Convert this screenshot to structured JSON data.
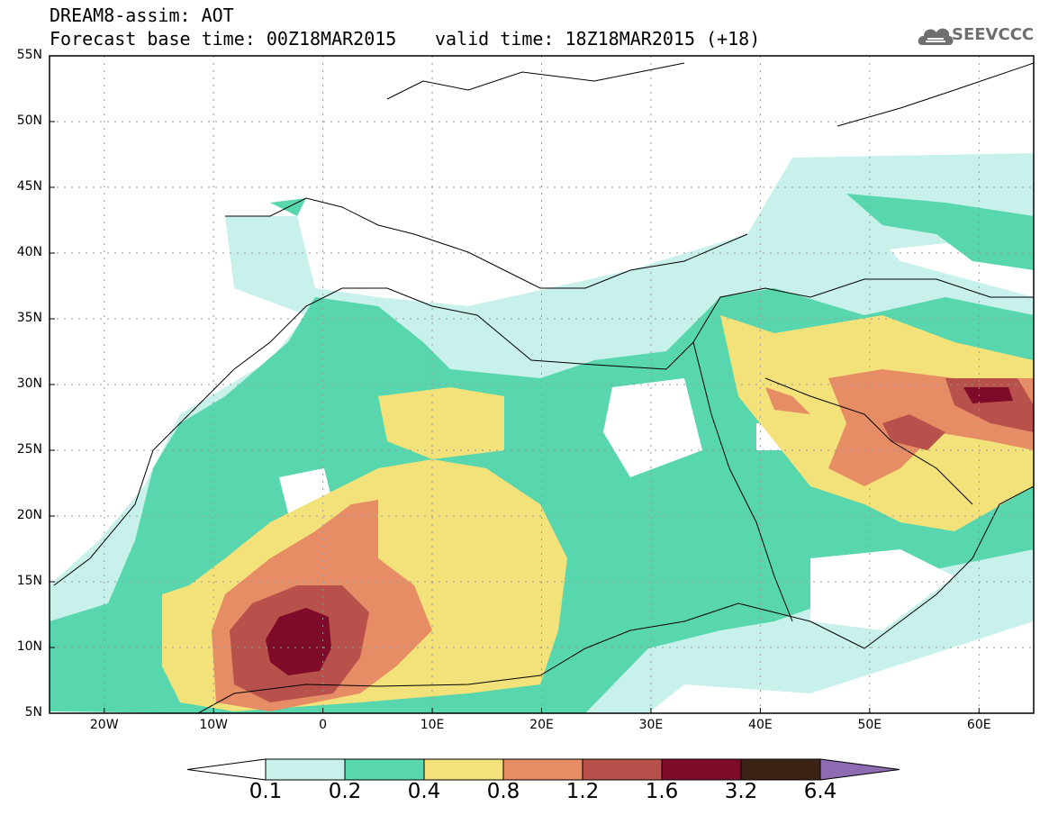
{
  "header": {
    "title_line1": "DREAM8-assim: AOT",
    "title_line2": "Forecast base time: 00Z18MAR2015",
    "valid_time": "valid time: 18Z18MAR2015 (+18)",
    "logo_text": "SEEVCCC"
  },
  "axes": {
    "lat_labels": [
      "55N",
      "50N",
      "45N",
      "40N",
      "35N",
      "30N",
      "25N",
      "20N",
      "15N",
      "10N",
      "5N"
    ],
    "lon_labels": [
      "20W",
      "10W",
      "0",
      "10E",
      "20E",
      "30E",
      "40E",
      "50E",
      "60E"
    ]
  },
  "colorbar": {
    "labels": [
      "0.1",
      "0.2",
      "0.4",
      "0.8",
      "1.2",
      "1.6",
      "3.2",
      "6.4"
    ],
    "colors": [
      "#c7f1ea",
      "#58d6ad",
      "#f3e27a",
      "#e68d66",
      "#b8514b",
      "#7f0b2a",
      "#3d2316",
      "#8e6cb3"
    ]
  },
  "map": {
    "lat_range": [
      5,
      55
    ],
    "lon_range": [
      -25,
      65
    ],
    "grid": "dotted"
  }
}
